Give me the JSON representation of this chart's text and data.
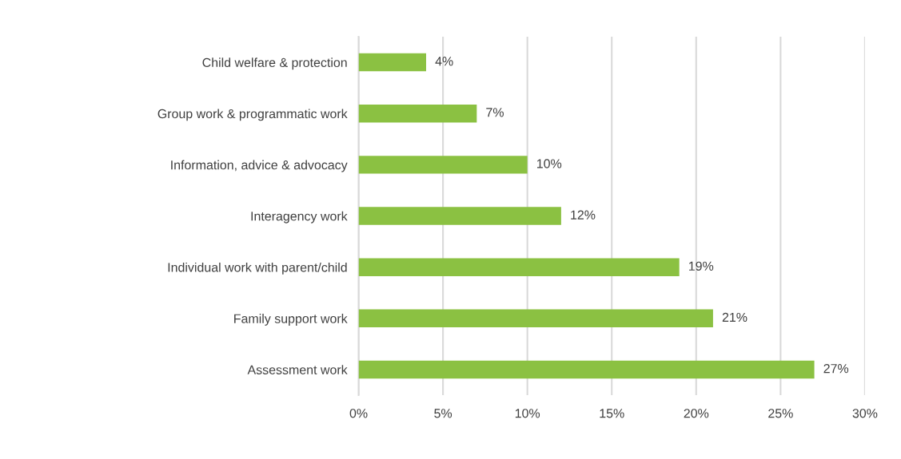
{
  "chart_data": {
    "type": "bar",
    "orientation": "horizontal",
    "categories": [
      "Child welfare & protection",
      "Group work & programmatic work",
      "Information, advice & advocacy",
      "Interagency work",
      "Individual work with parent/child",
      "Family support work",
      "Assessment work"
    ],
    "values": [
      4,
      7,
      10,
      12,
      19,
      21,
      27
    ],
    "value_labels": [
      "4%",
      "7%",
      "10%",
      "12%",
      "19%",
      "21%",
      "27%"
    ],
    "color": "#8bc142",
    "xlim": [
      0,
      30
    ],
    "xticks": [
      {
        "value": 0,
        "label": "0%"
      },
      {
        "value": 5,
        "label": "5%"
      },
      {
        "value": 10,
        "label": "10%"
      },
      {
        "value": 15,
        "label": "15%"
      },
      {
        "value": 20,
        "label": "20%"
      },
      {
        "value": 25,
        "label": "25%"
      },
      {
        "value": 30,
        "label": "30%"
      }
    ],
    "grid": "x"
  }
}
